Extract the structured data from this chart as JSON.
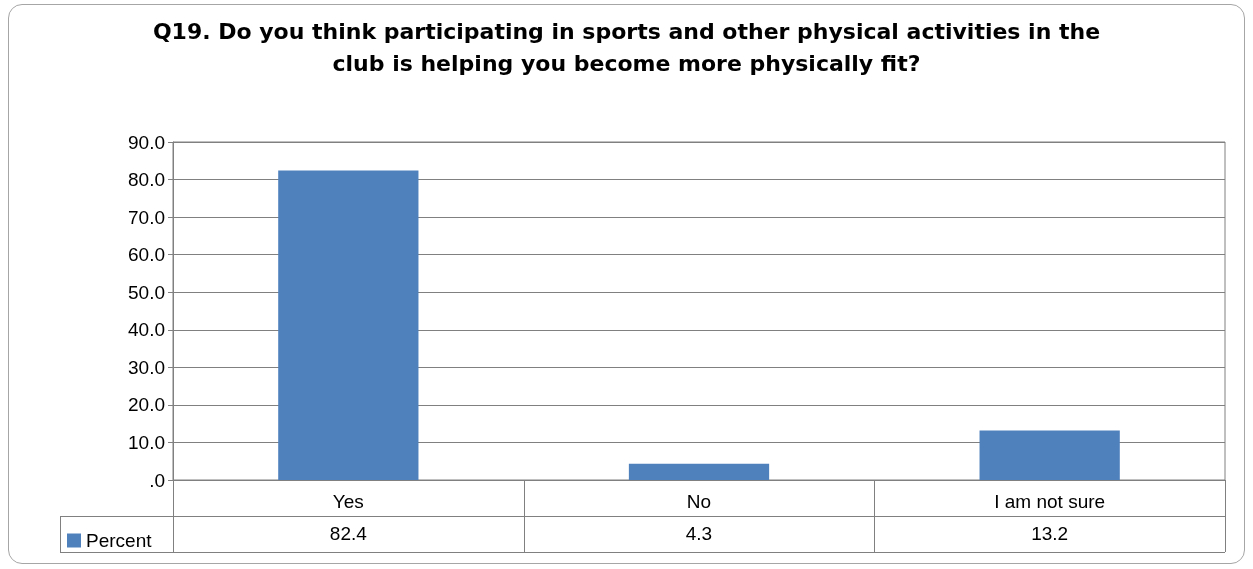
{
  "chart_data": {
    "type": "bar",
    "title": "Q19. Do you think participating in sports and other physical activities in the club is helping you become more physically fit?",
    "categories": [
      "Yes",
      "No",
      "I am not sure"
    ],
    "series": [
      {
        "name": "Percent",
        "color": "#4f81bd",
        "values": [
          82.4,
          4.3,
          13.2
        ]
      }
    ],
    "ylim": [
      0,
      90
    ],
    "yticks": [
      {
        "value": 0,
        "label": ".0"
      },
      {
        "value": 10,
        "label": "10.0"
      },
      {
        "value": 20,
        "label": "20.0"
      },
      {
        "value": 30,
        "label": "30.0"
      },
      {
        "value": 40,
        "label": "40.0"
      },
      {
        "value": 50,
        "label": "50.0"
      },
      {
        "value": 60,
        "label": "60.0"
      },
      {
        "value": 70,
        "label": "70.0"
      },
      {
        "value": 80,
        "label": "80.0"
      },
      {
        "value": 90,
        "label": "90.0"
      }
    ],
    "grid": "y",
    "legend": "bottom left",
    "data_labels": true
  }
}
